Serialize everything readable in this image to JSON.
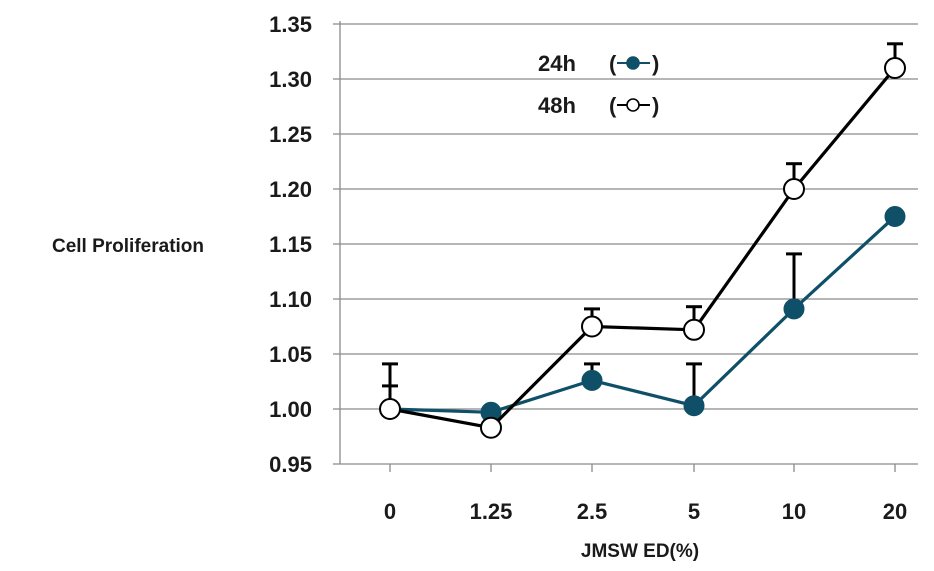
{
  "chart_data": {
    "type": "line",
    "xlabel": "JMSW ED(%)",
    "ylabel": "Cell Proliferation",
    "categories": [
      "0",
      "1.25",
      "2.5",
      "5",
      "10",
      "20"
    ],
    "ylim": [
      0.95,
      1.35
    ],
    "yticks": [
      "0.95",
      "1.00",
      "1.05",
      "1.10",
      "1.15",
      "1.20",
      "1.25",
      "1.30",
      "1.35"
    ],
    "grid": "horizontal",
    "legend_placement": "top-center",
    "series": [
      {
        "name": "24h",
        "legend_label": "24h",
        "marker": "filled-circle",
        "color": "#0f5068",
        "values": [
          1.0,
          0.997,
          1.026,
          1.003,
          1.091,
          1.175
        ],
        "error_upper": [
          1.021,
          null,
          1.041,
          1.041,
          1.141,
          null
        ]
      },
      {
        "name": "48h",
        "legend_label": "48h",
        "marker": "open-circle",
        "color": "#000000",
        "values": [
          1.0,
          0.983,
          1.075,
          1.072,
          1.2,
          1.31
        ],
        "error_upper": [
          1.041,
          null,
          1.091,
          1.093,
          1.223,
          1.332
        ]
      }
    ]
  }
}
